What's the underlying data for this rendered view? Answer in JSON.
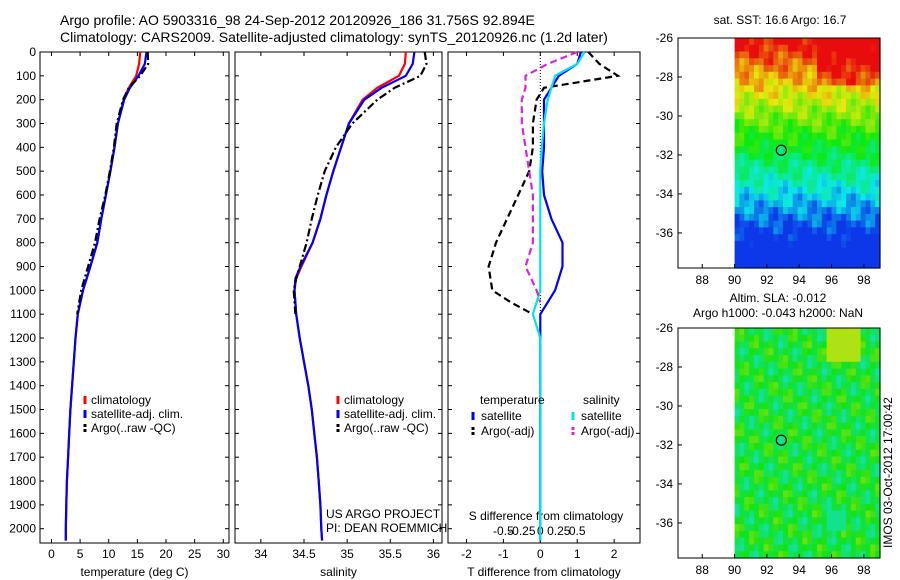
{
  "header": {
    "line1": "Argo profile: AO 5903316_98 24-Sep-2012 20120926_186 31.756S 92.894E",
    "line2": "Climatology: CARS2009. Satellite-adjusted climatology: synTS_20120926.nc (1.2d later)"
  },
  "chart_data": [
    {
      "type": "line",
      "panel": "temperature",
      "xlabel": "temperature (deg C)",
      "xlim": [
        -2,
        31
      ],
      "xticks": [
        0,
        5,
        10,
        15,
        20,
        25,
        30
      ],
      "ylim": [
        0,
        2060
      ],
      "yticks": [
        0,
        100,
        200,
        300,
        400,
        500,
        600,
        700,
        800,
        900,
        1000,
        1100,
        1200,
        1300,
        1400,
        1500,
        1600,
        1700,
        1800,
        1900,
        2000
      ],
      "yreversed": true,
      "legend": [
        "climatology",
        "satellite-adj. clim.",
        "Argo(..raw -QC)"
      ],
      "depth": [
        0,
        50,
        100,
        150,
        200,
        300,
        400,
        500,
        600,
        700,
        800,
        900,
        1000,
        1100,
        1200,
        1300,
        1400,
        1500,
        1600,
        1700,
        1800,
        1900,
        2000,
        2050
      ],
      "series": [
        {
          "name": "climatology",
          "color": "#ff0000",
          "style": "solid",
          "values": [
            15.5,
            15.3,
            14.8,
            13.5,
            12.6,
            11.6,
            11.0,
            10.3,
            9.5,
            8.7,
            8.0,
            6.8,
            5.5,
            4.6,
            4.2,
            3.9,
            3.6,
            3.3,
            3.1,
            2.9,
            2.7,
            2.6,
            2.5,
            2.5
          ]
        },
        {
          "name": "satellite-adj. clim.",
          "color": "#0000ff",
          "style": "solid",
          "values": [
            16.6,
            16.3,
            15.2,
            13.7,
            12.7,
            11.6,
            11.0,
            10.3,
            9.5,
            8.7,
            8.0,
            6.8,
            5.5,
            4.6,
            4.2,
            3.9,
            3.6,
            3.3,
            3.1,
            2.9,
            2.7,
            2.6,
            2.5,
            2.5
          ]
        },
        {
          "name": "Argo(..raw -QC)",
          "color": "#000000",
          "style": "dashdot",
          "values": [
            16.8,
            16.9,
            15.5,
            13.5,
            12.5,
            11.4,
            10.9,
            10.2,
            9.4,
            8.4,
            7.6,
            6.4,
            5.2,
            4.5,
            null,
            null,
            null,
            null,
            null,
            null,
            null,
            null,
            null,
            null
          ]
        }
      ]
    },
    {
      "type": "line",
      "panel": "salinity",
      "xlabel": "salinity",
      "xlim": [
        33.7,
        36.1
      ],
      "xticks": [
        34,
        34.5,
        35,
        35.5,
        36
      ],
      "ylim": [
        0,
        2060
      ],
      "yreversed": true,
      "legend": [
        "climatology",
        "satellite-adj. clim.",
        "Argo(..raw -QC)"
      ],
      "depth": [
        0,
        50,
        100,
        150,
        200,
        300,
        400,
        500,
        600,
        700,
        800,
        900,
        950,
        1000,
        1100,
        1200,
        1300,
        1400,
        1500,
        1600,
        1700,
        1800,
        1900,
        2000,
        2050
      ],
      "series": [
        {
          "name": "climatology",
          "color": "#ff0000",
          "style": "solid",
          "values": [
            35.68,
            35.67,
            35.6,
            35.35,
            35.18,
            35.02,
            34.93,
            34.84,
            34.76,
            34.69,
            34.6,
            34.47,
            34.41,
            34.39,
            34.41,
            34.45,
            34.5,
            34.55,
            34.59,
            34.62,
            34.65,
            34.67,
            34.69,
            34.7,
            34.71
          ]
        },
        {
          "name": "satellite-adj. clim.",
          "color": "#0000ff",
          "style": "solid",
          "values": [
            35.78,
            35.76,
            35.68,
            35.4,
            35.2,
            35.02,
            34.93,
            34.84,
            34.76,
            34.69,
            34.6,
            34.46,
            34.4,
            34.39,
            34.41,
            34.45,
            34.5,
            34.55,
            34.59,
            34.62,
            34.65,
            34.67,
            34.69,
            34.7,
            34.71
          ]
        },
        {
          "name": "Argo(..raw -QC)",
          "color": "#000000",
          "style": "dashdot",
          "values": [
            35.9,
            35.92,
            35.85,
            35.55,
            35.35,
            35.06,
            34.87,
            34.74,
            34.66,
            34.59,
            34.53,
            34.45,
            34.41,
            34.38,
            34.4,
            null,
            null,
            null,
            null,
            null,
            null,
            null,
            null,
            null,
            null
          ]
        }
      ]
    },
    {
      "type": "line",
      "panel": "difference",
      "xlabel": "T difference from climatology",
      "xlabel2": "S difference from climatology",
      "xlim": [
        -2.5,
        2.7
      ],
      "xticks": [
        -2,
        -1,
        0,
        1,
        2
      ],
      "xticks2": [
        "-0.5",
        "-0.25",
        "0",
        "0.25",
        "0.5"
      ],
      "ylim": [
        0,
        2060
      ],
      "yreversed": true,
      "legend_groups": {
        "temperature": "temperature",
        "salinity": "salinity"
      },
      "legend": [
        "satellite",
        "Argo(-adj)",
        "satellite",
        "Argo(-adj)"
      ],
      "depth": [
        0,
        50,
        100,
        150,
        200,
        300,
        400,
        500,
        600,
        700,
        800,
        900,
        1000,
        1050,
        1100,
        1200,
        1400,
        1600,
        1800,
        2000,
        2050
      ],
      "series": [
        {
          "name": "T satellite",
          "color": "#0000ff",
          "style": "solid",
          "values": [
            1.1,
            1.0,
            0.5,
            0.3,
            0.1,
            0.1,
            0.1,
            0.05,
            0.1,
            0.3,
            0.6,
            0.6,
            0.4,
            0.2,
            0.0,
            0.0,
            0.0,
            0.0,
            0.0,
            0.0,
            0.0
          ]
        },
        {
          "name": "T Argo(-adj)",
          "color": "#000000",
          "style": "dashed",
          "values": [
            1.3,
            1.6,
            2.1,
            0.1,
            -0.1,
            -0.2,
            -0.2,
            -0.3,
            -0.6,
            -0.9,
            -1.2,
            -1.4,
            -1.3,
            -0.8,
            -0.2,
            null,
            null,
            null,
            null,
            null,
            null
          ]
        },
        {
          "name": "S satellite",
          "color": "#00e5e5",
          "style": "solid",
          "values": [
            0.6,
            0.5,
            0.2,
            0.15,
            0.1,
            0.05,
            0.02,
            0.0,
            0.0,
            0.0,
            0.0,
            0.0,
            0.0,
            -0.05,
            -0.1,
            0.0,
            0.0,
            0.0,
            0.0,
            0.0,
            0.0
          ]
        },
        {
          "name": "S Argo(-adj)",
          "color": "#dd22dd",
          "style": "dashed",
          "values": [
            0.5,
            0.1,
            -0.2,
            -0.2,
            -0.25,
            -0.25,
            -0.2,
            -0.15,
            -0.1,
            -0.1,
            -0.1,
            -0.2,
            -0.05,
            0.0,
            null,
            null,
            null,
            null,
            null,
            null,
            null
          ]
        }
      ]
    },
    {
      "type": "heatmap",
      "panel": "sst-map",
      "title": "sat. SST: 16.6 Argo: 16.7",
      "xlim": [
        86.5,
        99
      ],
      "ylim": [
        -37.8,
        -26
      ],
      "xticks": [
        88,
        90,
        92,
        94,
        96,
        98
      ],
      "yticks": [
        -26,
        -28,
        -30,
        -32,
        -34,
        -36
      ],
      "float_position": [
        92.894,
        -31.756
      ]
    },
    {
      "type": "heatmap",
      "panel": "sla-map",
      "title": "Altim. SLA: -0.012",
      "title2": "Argo h1000: -0.043 h2000: NaN",
      "xlim": [
        86.5,
        99
      ],
      "ylim": [
        -37.8,
        -26
      ],
      "xticks": [
        88,
        90,
        92,
        94,
        96,
        98
      ],
      "yticks": [
        -26,
        -28,
        -30,
        -32,
        -34,
        -36
      ],
      "float_position": [
        92.894,
        -31.756
      ]
    }
  ],
  "credits": {
    "project": "US ARGO PROJECT",
    "pi": "PI: DEAN ROEMMICH",
    "stamp": "IMOS 03-Oct-2012 17:00:42"
  }
}
